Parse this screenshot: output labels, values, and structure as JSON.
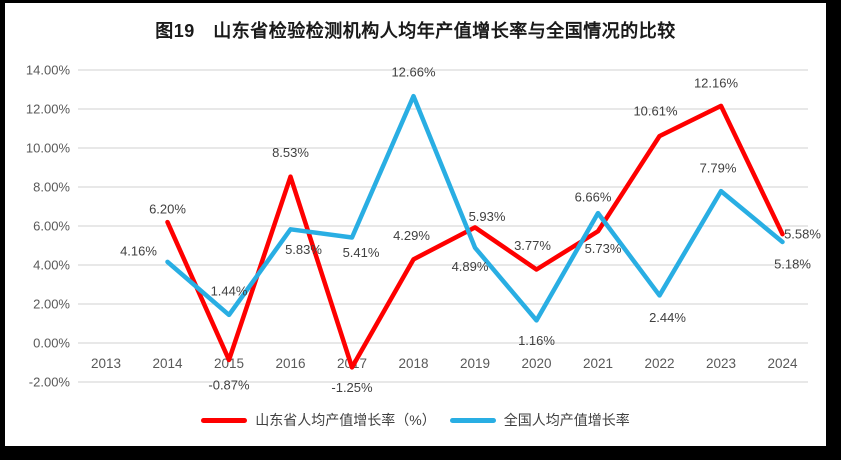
{
  "frame": {
    "border_color": "#000000",
    "paper_color": "#ffffff"
  },
  "chart_data": {
    "type": "line",
    "title": "图19　山东省检验检测机构人均年产值增长率与全国情况的比较",
    "categories": [
      "2013",
      "2014",
      "2015",
      "2016",
      "2017",
      "2018",
      "2019",
      "2020",
      "2021",
      "2022",
      "2023",
      "2024"
    ],
    "y_ticks": [
      "14.00%",
      "12.00%",
      "10.00%",
      "8.00%",
      "6.00%",
      "4.00%",
      "2.00%",
      "0.00%",
      "-2.00%"
    ],
    "ylim": [
      -2,
      14
    ],
    "grid": "horizontal",
    "gridline_color": "#D9D9D9",
    "tick_color": "#595959",
    "data_label_color": "#404040",
    "legend_position": "bottom",
    "series": [
      {
        "name": "山东省人均产值增长率（%）",
        "color": "#FE0000",
        "values": [
          null,
          6.2,
          -0.87,
          8.53,
          -1.25,
          4.29,
          5.93,
          3.77,
          5.73,
          10.61,
          12.16,
          5.58
        ],
        "labels": [
          null,
          "6.20%",
          "-0.87%",
          "8.53%",
          "-1.25%",
          "4.29%",
          "5.93%",
          "3.77%",
          "5.73%",
          "10.61%",
          "12.16%",
          "5.58%"
        ],
        "label_offsets": [
          null,
          [
            0,
            -13
          ],
          [
            0,
            25
          ],
          [
            0,
            -24
          ],
          [
            0,
            20
          ],
          [
            -2,
            -24
          ],
          [
            12,
            -11
          ],
          [
            -4,
            -24
          ],
          [
            5,
            17
          ],
          [
            -4,
            -25
          ],
          [
            -5,
            -23
          ],
          [
            20,
            0
          ]
        ]
      },
      {
        "name": "全国人均产值增长率",
        "color": "#29AEE3",
        "values": [
          null,
          4.16,
          1.44,
          5.83,
          5.41,
          12.66,
          4.89,
          1.16,
          6.66,
          2.44,
          7.79,
          5.18
        ],
        "labels": [
          null,
          "4.16%",
          "1.44%",
          "5.83%",
          "5.41%",
          "12.66%",
          "4.89%",
          "1.16%",
          "6.66%",
          "2.44%",
          "7.79%",
          "5.18%"
        ],
        "label_offsets": [
          null,
          [
            -29,
            -11
          ],
          [
            0,
            -24
          ],
          [
            13,
            20
          ],
          [
            9,
            15
          ],
          [
            0,
            -24
          ],
          [
            -5,
            19
          ],
          [
            0,
            20
          ],
          [
            -5,
            -16
          ],
          [
            8,
            22
          ],
          [
            -3,
            -23
          ],
          [
            10,
            22
          ]
        ]
      }
    ]
  }
}
